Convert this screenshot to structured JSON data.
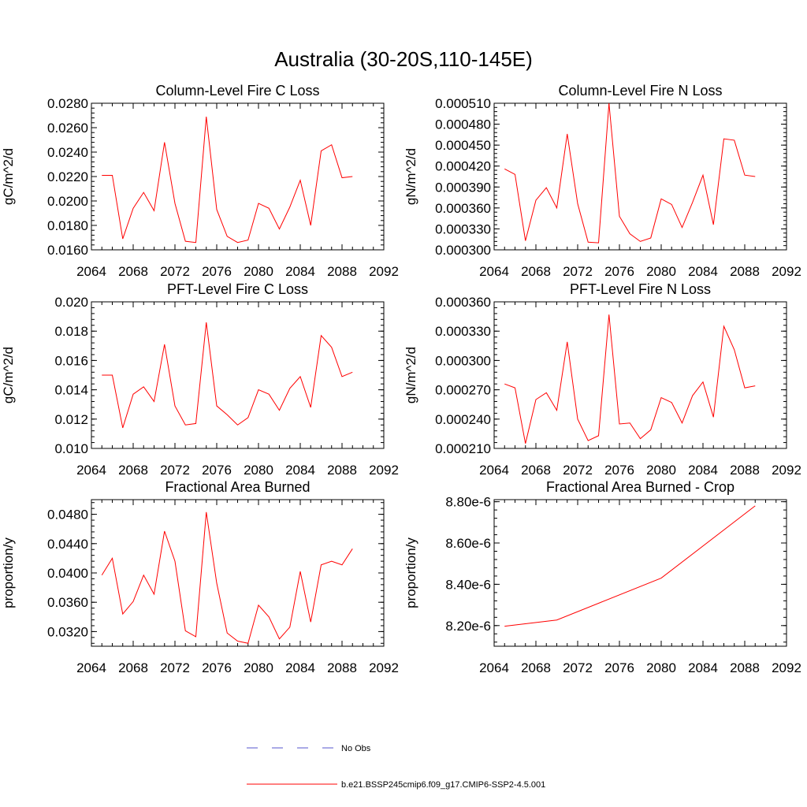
{
  "figure": {
    "title": "Australia (30-20S,110-145E)"
  },
  "chart_data": [
    {
      "type": "line",
      "title": "Column-Level Fire C Loss",
      "ylabel": "gC/m^2/d",
      "xlim": [
        2064,
        2092
      ],
      "ylim": [
        0.016,
        0.028
      ],
      "xticks": [
        "2064",
        "2068",
        "2072",
        "2076",
        "2080",
        "2084",
        "2088",
        "2092"
      ],
      "yticks": [
        "0.0160",
        "0.0180",
        "0.0200",
        "0.0220",
        "0.0240",
        "0.0260",
        "0.0280"
      ],
      "grid": false,
      "series": [
        {
          "name": "b.e21.BSSP245cmip6.f09_g17.CMIP6-SSP2-4.5.001",
          "color": "#ff0000",
          "x": [
            2065,
            2066,
            2067,
            2068,
            2069,
            2070,
            2071,
            2072,
            2073,
            2074,
            2075,
            2076,
            2077,
            2078,
            2079,
            2080,
            2081,
            2082,
            2083,
            2084,
            2085,
            2086,
            2087,
            2088,
            2089
          ],
          "y": [
            0.0221,
            0.0221,
            0.0169,
            0.0194,
            0.0207,
            0.0192,
            0.0248,
            0.0198,
            0.0167,
            0.0166,
            0.0269,
            0.0193,
            0.0171,
            0.0166,
            0.0168,
            0.0198,
            0.0194,
            0.0177,
            0.0195,
            0.0217,
            0.018,
            0.0241,
            0.0246,
            0.0219,
            0.022
          ]
        }
      ]
    },
    {
      "type": "line",
      "title": "Column-Level Fire N Loss",
      "ylabel": "gN/m^2/d",
      "xlim": [
        2064,
        2092
      ],
      "ylim": [
        0.0003,
        0.00051
      ],
      "xticks": [
        "2064",
        "2068",
        "2072",
        "2076",
        "2080",
        "2084",
        "2088",
        "2092"
      ],
      "yticks": [
        "0.000300",
        "0.000330",
        "0.000360",
        "0.000390",
        "0.000420",
        "0.000450",
        "0.000480",
        "0.000510"
      ],
      "grid": false,
      "series": [
        {
          "name": "b.e21.BSSP245cmip6.f09_g17.CMIP6-SSP2-4.5.001",
          "color": "#ff0000",
          "x": [
            2065,
            2066,
            2067,
            2068,
            2069,
            2070,
            2071,
            2072,
            2073,
            2074,
            2075,
            2076,
            2077,
            2078,
            2079,
            2080,
            2081,
            2082,
            2083,
            2084,
            2085,
            2086,
            2087,
            2088,
            2089
          ],
          "y": [
            0.000416,
            0.000408,
            0.000313,
            0.000371,
            0.000389,
            0.00036,
            0.000466,
            0.000366,
            0.000311,
            0.00031,
            0.00051,
            0.000348,
            0.000323,
            0.000312,
            0.000317,
            0.000373,
            0.000365,
            0.000332,
            0.000368,
            0.000407,
            0.000336,
            0.000459,
            0.000457,
            0.000407,
            0.000405
          ]
        }
      ]
    },
    {
      "type": "line",
      "title": "PFT-Level Fire C Loss",
      "ylabel": "gC/m^2/d",
      "xlim": [
        2064,
        2092
      ],
      "ylim": [
        0.01,
        0.02
      ],
      "xticks": [
        "2064",
        "2068",
        "2072",
        "2076",
        "2080",
        "2084",
        "2088",
        "2092"
      ],
      "yticks": [
        "0.010",
        "0.012",
        "0.014",
        "0.016",
        "0.018",
        "0.020"
      ],
      "grid": false,
      "series": [
        {
          "name": "b.e21.BSSP245cmip6.f09_g17.CMIP6-SSP2-4.5.001",
          "color": "#ff0000",
          "x": [
            2065,
            2066,
            2067,
            2068,
            2069,
            2070,
            2071,
            2072,
            2073,
            2074,
            2075,
            2076,
            2077,
            2078,
            2079,
            2080,
            2081,
            2082,
            2083,
            2084,
            2085,
            2086,
            2087,
            2088,
            2089
          ],
          "y": [
            0.015,
            0.015,
            0.0114,
            0.0137,
            0.0142,
            0.0132,
            0.0171,
            0.0129,
            0.0116,
            0.0117,
            0.0186,
            0.0129,
            0.0123,
            0.0116,
            0.0121,
            0.014,
            0.0137,
            0.0126,
            0.0141,
            0.0149,
            0.0128,
            0.0177,
            0.0169,
            0.0149,
            0.0152
          ]
        }
      ]
    },
    {
      "type": "line",
      "title": "PFT-Level Fire N Loss",
      "ylabel": "gN/m^2/d",
      "xlim": [
        2064,
        2092
      ],
      "ylim": [
        0.00021,
        0.00036
      ],
      "xticks": [
        "2064",
        "2068",
        "2072",
        "2076",
        "2080",
        "2084",
        "2088",
        "2092"
      ],
      "yticks": [
        "0.000210",
        "0.000240",
        "0.000270",
        "0.000300",
        "0.000330",
        "0.000360"
      ],
      "grid": false,
      "series": [
        {
          "name": "b.e21.BSSP245cmip6.f09_g17.CMIP6-SSP2-4.5.001",
          "color": "#ff0000",
          "x": [
            2065,
            2066,
            2067,
            2068,
            2069,
            2070,
            2071,
            2072,
            2073,
            2074,
            2075,
            2076,
            2077,
            2078,
            2079,
            2080,
            2081,
            2082,
            2083,
            2084,
            2085,
            2086,
            2087,
            2088,
            2089
          ],
          "y": [
            0.000276,
            0.000272,
            0.000215,
            0.00026,
            0.000267,
            0.000249,
            0.000319,
            0.00024,
            0.000218,
            0.000223,
            0.000347,
            0.000235,
            0.000236,
            0.00022,
            0.000229,
            0.000262,
            0.000257,
            0.000236,
            0.000264,
            0.000278,
            0.000242,
            0.000335,
            0.000311,
            0.000272,
            0.000274
          ]
        }
      ]
    },
    {
      "type": "line",
      "title": "Fractional Area Burned",
      "ylabel": "proportion/y",
      "xlim": [
        2064,
        2092
      ],
      "ylim": [
        0.03,
        0.05
      ],
      "xticks": [
        "2064",
        "2068",
        "2072",
        "2076",
        "2080",
        "2084",
        "2088",
        "2092"
      ],
      "yticks": [
        "0.0320",
        "0.0360",
        "0.0400",
        "0.0440",
        "0.0480"
      ],
      "ytick_values": [
        0.032,
        0.036,
        0.04,
        0.044,
        0.048
      ],
      "grid": false,
      "series": [
        {
          "name": "b.e21.BSSP245cmip6.f09_g17.CMIP6-SSP2-4.5.001",
          "color": "#ff0000",
          "x": [
            2065,
            2066,
            2067,
            2068,
            2069,
            2070,
            2071,
            2072,
            2073,
            2074,
            2075,
            2076,
            2077,
            2078,
            2079,
            2080,
            2081,
            2082,
            2083,
            2084,
            2085,
            2086,
            2087,
            2088,
            2089
          ],
          "y": [
            0.0397,
            0.042,
            0.0344,
            0.0361,
            0.0397,
            0.0371,
            0.0457,
            0.0416,
            0.0321,
            0.0313,
            0.0483,
            0.0386,
            0.0318,
            0.0307,
            0.0304,
            0.0356,
            0.034,
            0.031,
            0.0326,
            0.0402,
            0.0333,
            0.0411,
            0.0416,
            0.0411,
            0.0433
          ]
        }
      ]
    },
    {
      "type": "line",
      "title": "Fractional Area Burned - Crop",
      "ylabel": "proportion/y",
      "xlim": [
        2064,
        2092
      ],
      "ylim": [
        8.1e-06,
        8.81e-06
      ],
      "xticks": [
        "2064",
        "2068",
        "2072",
        "2076",
        "2080",
        "2084",
        "2088",
        "2092"
      ],
      "yticks": [
        "8.20e-6",
        "8.40e-6",
        "8.60e-6",
        "8.80e-6"
      ],
      "ytick_values": [
        8.2e-06,
        8.4e-06,
        8.6e-06,
        8.8e-06
      ],
      "grid": false,
      "series": [
        {
          "name": "b.e21.BSSP245cmip6.f09_g17.CMIP6-SSP2-4.5.001",
          "color": "#ff0000",
          "x": [
            2065,
            2070,
            2080,
            2089
          ],
          "y": [
            8.197e-06,
            8.227e-06,
            8.43e-06,
            8.78e-06
          ]
        }
      ]
    }
  ],
  "legend": {
    "placement": "bottom-center",
    "items": [
      {
        "label": "No Obs",
        "color": "#5555cc",
        "style": "dashed"
      },
      {
        "label": "b.e21.BSSP245cmip6.f09_g17.CMIP6-SSP2-4.5.001",
        "color": "#ff0000",
        "style": "solid"
      }
    ]
  }
}
